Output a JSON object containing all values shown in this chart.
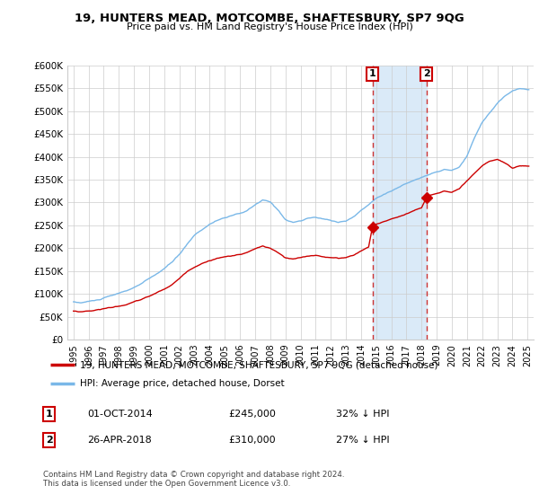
{
  "title": "19, HUNTERS MEAD, MOTCOMBE, SHAFTESBURY, SP7 9QG",
  "subtitle": "Price paid vs. HM Land Registry's House Price Index (HPI)",
  "legend_line1": "19, HUNTERS MEAD, MOTCOMBE, SHAFTESBURY, SP7 9QG (detached house)",
  "legend_line2": "HPI: Average price, detached house, Dorset",
  "footnote": "Contains HM Land Registry data © Crown copyright and database right 2024.\nThis data is licensed under the Open Government Licence v3.0.",
  "sale1_label": "1",
  "sale1_date": "01-OCT-2014",
  "sale1_price": "£245,000",
  "sale1_hpi": "32% ↓ HPI",
  "sale1_year": 2014.75,
  "sale1_value": 245000,
  "sale2_label": "2",
  "sale2_date": "26-APR-2018",
  "sale2_price": "£310,000",
  "sale2_hpi": "27% ↓ HPI",
  "sale2_year": 2018.32,
  "sale2_value": 310000,
  "hpi_color": "#7ab8e8",
  "hpi_fill_color": "#daeaf8",
  "shade_color": "#daeaf8",
  "price_color": "#cc0000",
  "marker_color": "#cc0000",
  "vline_color": "#cc3333",
  "background_color": "#ffffff",
  "grid_color": "#cccccc",
  "ylim": [
    0,
    600000
  ],
  "xlim_start": 1994.6,
  "xlim_end": 2025.4,
  "yticks": [
    0,
    50000,
    100000,
    150000,
    200000,
    250000,
    300000,
    350000,
    400000,
    450000,
    500000,
    550000,
    600000
  ],
  "ytick_labels": [
    "£0",
    "£50K",
    "£100K",
    "£150K",
    "£200K",
    "£250K",
    "£300K",
    "£350K",
    "£400K",
    "£450K",
    "£500K",
    "£550K",
    "£600K"
  ],
  "xtick_years": [
    1995,
    1996,
    1997,
    1998,
    1999,
    2000,
    2001,
    2002,
    2003,
    2004,
    2005,
    2006,
    2007,
    2008,
    2009,
    2010,
    2011,
    2012,
    2013,
    2014,
    2015,
    2016,
    2017,
    2018,
    2019,
    2020,
    2021,
    2022,
    2023,
    2024,
    2025
  ]
}
